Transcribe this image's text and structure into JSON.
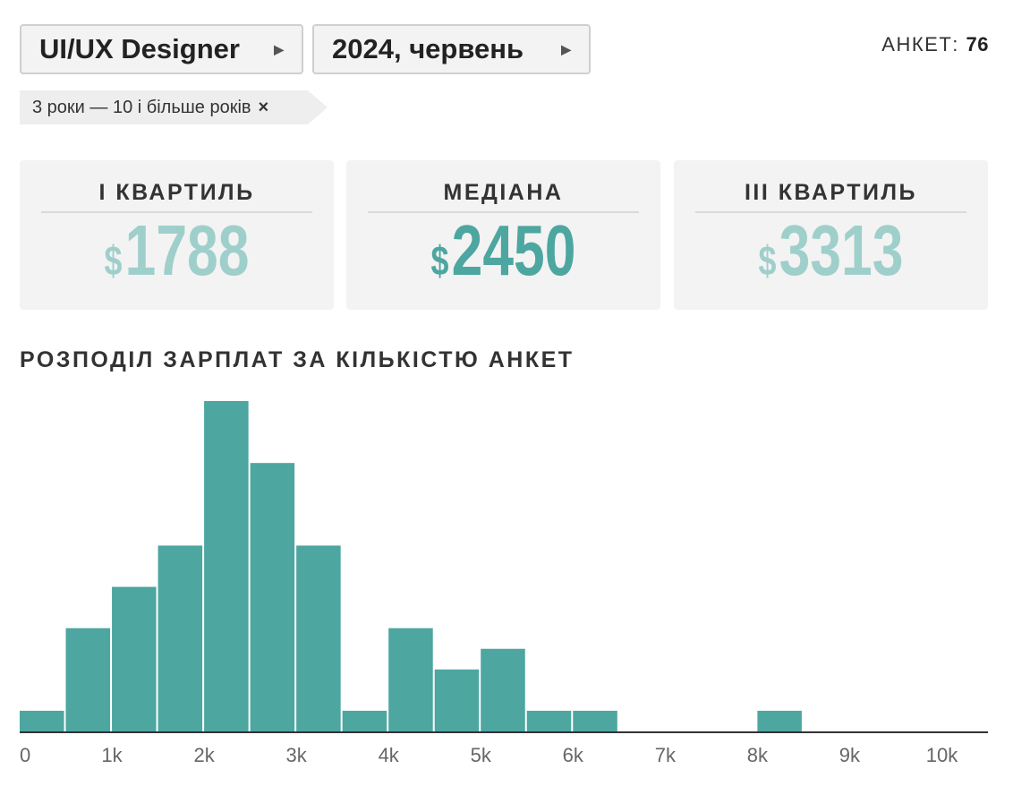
{
  "filters": {
    "position": "UI/UX Designer",
    "period": "2024, червень",
    "experience_tag": "3 роки — 10 і більше років",
    "remove_icon": "×"
  },
  "count": {
    "label": "АНКЕТ:",
    "value": "76"
  },
  "stats": {
    "q1": {
      "title": "I КВАРТИЛЬ",
      "currency": "$",
      "value": "1788"
    },
    "median": {
      "title": "МЕДІАНА",
      "currency": "$",
      "value": "2450"
    },
    "q3": {
      "title": "III КВАРТИЛЬ",
      "currency": "$",
      "value": "3313"
    }
  },
  "colors": {
    "bar": "#4da6a0",
    "light": "#9fcfcb",
    "accent": "#4da6a0"
  },
  "chart_data": {
    "type": "bar",
    "title": "РОЗПОДІЛ ЗАРПЛАТ ЗА КІЛЬКІСТЮ АНКЕТ",
    "xlabel": "",
    "ylabel": "",
    "bin_width": 500,
    "bins": [
      {
        "start": 0,
        "count": 1
      },
      {
        "start": 500,
        "count": 5
      },
      {
        "start": 1000,
        "count": 7
      },
      {
        "start": 1500,
        "count": 9
      },
      {
        "start": 2000,
        "count": 16
      },
      {
        "start": 2500,
        "count": 13
      },
      {
        "start": 3000,
        "count": 9
      },
      {
        "start": 3500,
        "count": 1
      },
      {
        "start": 4000,
        "count": 5
      },
      {
        "start": 4500,
        "count": 3
      },
      {
        "start": 5000,
        "count": 4
      },
      {
        "start": 5500,
        "count": 1
      },
      {
        "start": 6000,
        "count": 1
      },
      {
        "start": 6500,
        "count": 0
      },
      {
        "start": 7000,
        "count": 0
      },
      {
        "start": 7500,
        "count": 0
      },
      {
        "start": 8000,
        "count": 1
      },
      {
        "start": 8500,
        "count": 0
      },
      {
        "start": 9000,
        "count": 0
      },
      {
        "start": 9500,
        "count": 0
      },
      {
        "start": 10000,
        "count": 0
      }
    ],
    "xlim": [
      0,
      10500
    ],
    "ylim": [
      0,
      16
    ],
    "x_ticks": [
      {
        "value": 0,
        "label": "0"
      },
      {
        "value": 1000,
        "label": "1k"
      },
      {
        "value": 2000,
        "label": "2k"
      },
      {
        "value": 3000,
        "label": "3k"
      },
      {
        "value": 4000,
        "label": "4k"
      },
      {
        "value": 5000,
        "label": "5k"
      },
      {
        "value": 6000,
        "label": "6k"
      },
      {
        "value": 7000,
        "label": "7k"
      },
      {
        "value": 8000,
        "label": "8k"
      },
      {
        "value": 9000,
        "label": "9k"
      },
      {
        "value": 10000,
        "label": "10k"
      }
    ]
  }
}
